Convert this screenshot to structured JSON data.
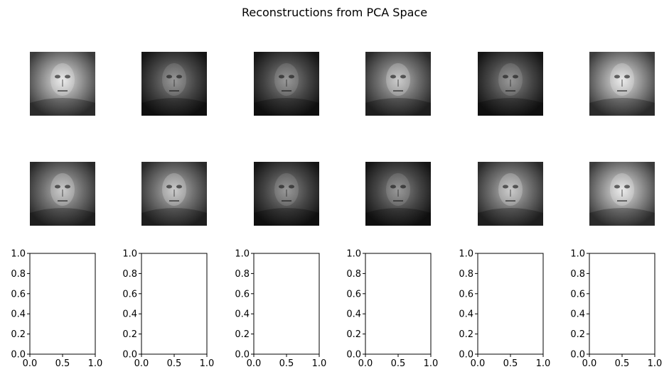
{
  "title": "Reconstructions from PCA Space",
  "chart_data": {
    "type": "image-grid",
    "title": "Reconstructions from PCA Space",
    "rows": 3,
    "cols": 6,
    "cmap": "gray",
    "images": [
      {
        "id": "recon-1",
        "tone": "light"
      },
      {
        "id": "recon-2",
        "tone": "dark"
      },
      {
        "id": "recon-3",
        "tone": "dark"
      },
      {
        "id": "recon-4",
        "tone": "mid"
      },
      {
        "id": "recon-5",
        "tone": "dark"
      },
      {
        "id": "recon-6",
        "tone": "light"
      },
      {
        "id": "recon-7",
        "tone": "mid"
      },
      {
        "id": "recon-8",
        "tone": "mid"
      },
      {
        "id": "recon-9",
        "tone": "dark"
      },
      {
        "id": "recon-10",
        "tone": "dark"
      },
      {
        "id": "recon-11",
        "tone": "mid"
      },
      {
        "id": "recon-12",
        "tone": "light"
      }
    ],
    "empty_axes": {
      "count": 6,
      "xlim": [
        0.0,
        1.0
      ],
      "ylim": [
        0.0,
        1.0
      ],
      "xticks": [
        "0.0",
        "0.5",
        "1.0"
      ],
      "yticks": [
        "0.0",
        "0.2",
        "0.4",
        "0.6",
        "0.8",
        "1.0"
      ],
      "grid": false
    }
  }
}
